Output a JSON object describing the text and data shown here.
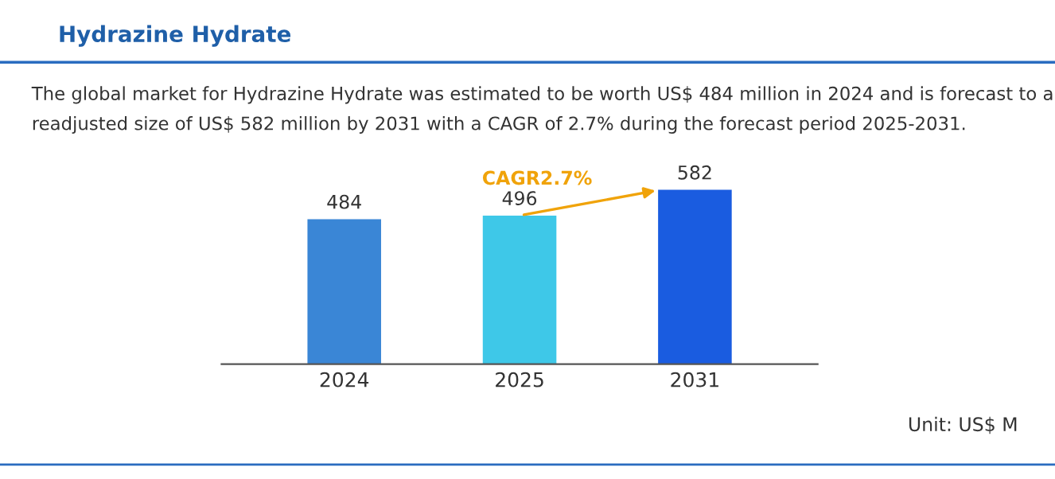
{
  "chart_data": {
    "type": "bar",
    "title": "Hydrazine Hydrate",
    "subtitle": "The global market for Hydrazine Hydrate was estimated to be worth US$ 484 million in 2024 and is forecast to a readjusted size of US$ 582 million by 2031 with a CAGR of 2.7% during the forecast period 2025-2031.",
    "categories": [
      "2024",
      "2025",
      "2031"
    ],
    "values": [
      484,
      496,
      582
    ],
    "colors": [
      "#3a86d6",
      "#3ec8e8",
      "#1a5ce0"
    ],
    "data_labels": true,
    "grid": false,
    "tick_labels": "x",
    "annotations": [
      "CAGR2.7%",
      "Unit: US$ M"
    ]
  }
}
